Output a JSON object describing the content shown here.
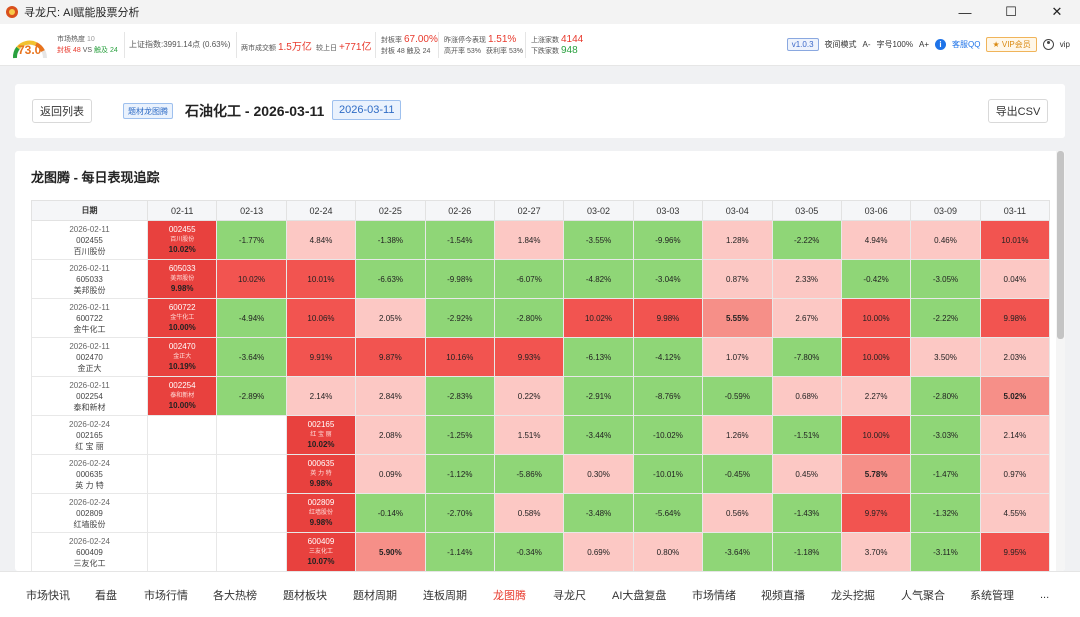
{
  "window": {
    "title": "寻龙尺: AI赋能股票分析",
    "controls": [
      "—",
      "☐",
      "✕"
    ]
  },
  "stats": {
    "gauge_value": "73.0",
    "heat_label": "市场热度",
    "heat_small": "10",
    "seal_label": "封板",
    "seal_value": "48",
    "vs": "VS",
    "break_label": "触及",
    "break_value": "24",
    "index_text": "上证指数:3991.14点 (0.63%)",
    "turnover_label": "两市成交额",
    "turnover_value": "1.5万亿",
    "vs_yesterday_label": "较上日",
    "vs_yesterday_value": "+771亿",
    "seal_rate_label": "封板率",
    "seal_rate_value": "67.00%",
    "seal_sub": "封板 48  触及 24",
    "yday_label": "昨涨停今表现",
    "yday_value": "1.51%",
    "high_open": "高开率 53%",
    "profit": "获利率 53%",
    "up_label": "上涨家数",
    "up_value": "4144",
    "down_label": "下跌家数",
    "down_value": "948",
    "version": "v1.0.3",
    "night_mode": "夜间模式",
    "font_minus": "A-",
    "font_size": "字号100%",
    "font_plus": "A+",
    "service": "客服QQ",
    "vip": "VIP会员",
    "user": "vip"
  },
  "header": {
    "back": "返回列表",
    "tag": "题材龙图腾",
    "title": "石油化工 - 2026-03-11",
    "date_badge": "2026-03-11",
    "export": "导出CSV"
  },
  "section_title": "龙图腾 - 每日表现追踪",
  "table": {
    "date_header": "日期",
    "columns": [
      "02-11",
      "02-13",
      "02-24",
      "02-25",
      "02-26",
      "02-27",
      "03-02",
      "03-03",
      "03-04",
      "03-05",
      "03-06",
      "03-09",
      "03-11"
    ],
    "rows": [
      {
        "date": "2026-02-11",
        "code": "002455",
        "name": "百川股份",
        "start": 0,
        "first_pct": "10.02%",
        "cells": [
          null,
          "-1.77%",
          "4.84%",
          "-1.38%",
          "-1.54%",
          "1.84%",
          "-3.55%",
          "-9.96%",
          "1.28%",
          "-2.22%",
          "4.94%",
          "0.46%",
          "10.01%"
        ]
      },
      {
        "date": "2026-02-11",
        "code": "605033",
        "name": "美邦股份",
        "start": 0,
        "first_pct": "9.98%",
        "cells": [
          null,
          "10.02%",
          "10.01%",
          "-6.63%",
          "-9.98%",
          "-6.07%",
          "-4.82%",
          "-3.04%",
          "0.87%",
          "2.33%",
          "-0.42%",
          "-3.05%",
          "0.04%"
        ]
      },
      {
        "date": "2026-02-11",
        "code": "600722",
        "name": "金牛化工",
        "start": 0,
        "first_pct": "10.00%",
        "cells": [
          null,
          "-4.94%",
          "10.06%",
          "2.05%",
          "-2.92%",
          "-2.80%",
          "10.02%",
          "9.98%",
          "5.55%",
          "2.67%",
          "10.00%",
          "-2.22%",
          "9.98%"
        ]
      },
      {
        "date": "2026-02-11",
        "code": "002470",
        "name": "金正大",
        "start": 0,
        "first_pct": "10.19%",
        "cells": [
          null,
          "-3.64%",
          "9.91%",
          "9.87%",
          "10.16%",
          "9.93%",
          "-6.13%",
          "-4.12%",
          "1.07%",
          "-7.80%",
          "10.00%",
          "3.50%",
          "2.03%"
        ]
      },
      {
        "date": "2026-02-11",
        "code": "002254",
        "name": "泰和新材",
        "start": 0,
        "first_pct": "10.00%",
        "cells": [
          null,
          "-2.89%",
          "2.14%",
          "2.84%",
          "-2.83%",
          "0.22%",
          "-2.91%",
          "-8.76%",
          "-0.59%",
          "0.68%",
          "2.27%",
          "-2.80%",
          "5.02%"
        ]
      },
      {
        "date": "2026-02-24",
        "code": "002165",
        "name": "红 宝 丽",
        "start": 2,
        "first_pct": "10.02%",
        "cells": [
          null,
          null,
          null,
          "2.08%",
          "-1.25%",
          "1.51%",
          "-3.44%",
          "-10.02%",
          "1.26%",
          "-1.51%",
          "10.00%",
          "-3.03%",
          "2.14%"
        ]
      },
      {
        "date": "2026-02-24",
        "code": "000635",
        "name": "英 力 特",
        "start": 2,
        "first_pct": "9.98%",
        "cells": [
          null,
          null,
          null,
          "0.09%",
          "-1.12%",
          "-5.86%",
          "0.30%",
          "-10.01%",
          "-0.45%",
          "0.45%",
          "5.78%",
          "-1.47%",
          "0.97%"
        ]
      },
      {
        "date": "2026-02-24",
        "code": "002809",
        "name": "红墙股份",
        "start": 2,
        "first_pct": "9.98%",
        "cells": [
          null,
          null,
          null,
          "-0.14%",
          "-2.70%",
          "0.58%",
          "-3.48%",
          "-5.64%",
          "0.56%",
          "-1.43%",
          "9.97%",
          "-1.32%",
          "4.55%"
        ]
      },
      {
        "date": "2026-02-24",
        "code": "600409",
        "name": "三友化工",
        "start": 2,
        "first_pct": "10.07%",
        "cells": [
          null,
          null,
          null,
          "5.90%",
          "-1.14%",
          "-0.34%",
          "0.69%",
          "0.80%",
          "-3.64%",
          "-1.18%",
          "3.70%",
          "-3.11%",
          "9.95%"
        ]
      }
    ]
  },
  "nav": {
    "items": [
      "市场快讯",
      "看盘",
      "市场行情",
      "各大热榜",
      "题材板块",
      "题材周期",
      "连板周期",
      "龙图腾",
      "寻龙尺",
      "AI大盘复盘",
      "市场情绪",
      "视频直播",
      "龙头挖掘",
      "人气聚合",
      "系统管理",
      "..."
    ],
    "active": "龙图腾"
  },
  "colors": {
    "limit_up": "#e8413e",
    "positive": "#fcc8c4",
    "negative": "#8fd677",
    "accent_red": "#e8392c",
    "accent_blue": "#2f6cc5"
  }
}
